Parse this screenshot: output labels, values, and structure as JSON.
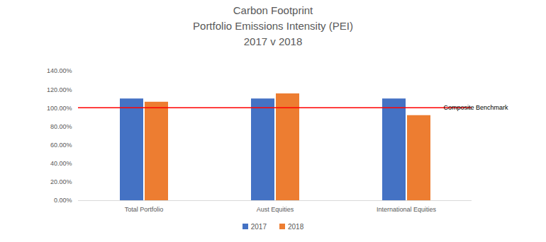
{
  "chart_data": {
    "type": "bar",
    "title": "Carbon Footprint",
    "subtitle": "Portfolio Emissions Intensity (PEI)\n2017 v 2018",
    "categories": [
      "Total Portfolio",
      "Aust Equities",
      "International Equities"
    ],
    "series": [
      {
        "name": "2017",
        "color": "#4472c4",
        "values": [
          110,
          110,
          110
        ]
      },
      {
        "name": "2018",
        "color": "#ed7d31",
        "values": [
          106.5,
          115.5,
          92
        ]
      }
    ],
    "ylim": [
      0,
      140
    ],
    "yticks": [
      {
        "value": 0,
        "label": "0.00%"
      },
      {
        "value": 20,
        "label": "20.00%"
      },
      {
        "value": 40,
        "label": "40.00%"
      },
      {
        "value": 60,
        "label": "60.00%"
      },
      {
        "value": 80,
        "label": "80.00%"
      },
      {
        "value": 100,
        "label": "100.00%"
      },
      {
        "value": 120,
        "label": "120.00%"
      },
      {
        "value": 140,
        "label": "140.00%"
      }
    ],
    "annotations": [
      {
        "text": "Composite Benchmark",
        "y": 100,
        "color": "#ff0000"
      }
    ],
    "grid": false,
    "legend": "bottom"
  }
}
